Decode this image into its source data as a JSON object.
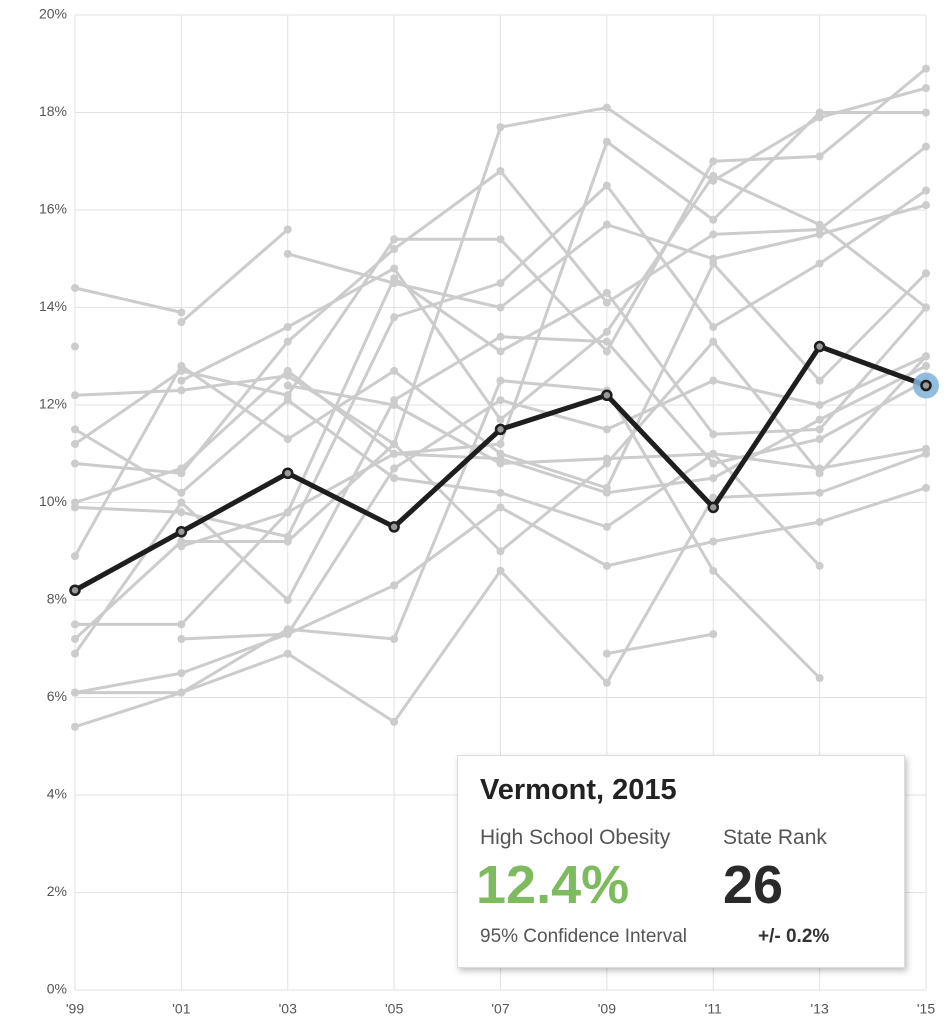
{
  "chart_data": {
    "type": "line",
    "categories": [
      "'99",
      "'01",
      "'03",
      "'05",
      "'07",
      "'09",
      "'11",
      "'13",
      "'15"
    ],
    "ylim": [
      0,
      20
    ],
    "yticks": [
      {
        "value": 0,
        "label": "0%"
      },
      {
        "value": 2,
        "label": "2%"
      },
      {
        "value": 4,
        "label": "4%"
      },
      {
        "value": 6,
        "label": "6%"
      },
      {
        "value": 8,
        "label": "8%"
      },
      {
        "value": 10,
        "label": "10%"
      },
      {
        "value": 12,
        "label": "12%"
      },
      {
        "value": 14,
        "label": "14%"
      },
      {
        "value": 16,
        "label": "16%"
      },
      {
        "value": 18,
        "label": "18%"
      },
      {
        "value": 20,
        "label": "20%"
      }
    ],
    "grid": true,
    "series": [
      {
        "color": "#cccccc",
        "values": [
          14.4,
          13.9,
          null,
          null,
          null,
          null,
          null,
          null,
          null
        ]
      },
      {
        "color": "#cccccc",
        "values": [
          null,
          13.7,
          15.6,
          null,
          null,
          null,
          null,
          null,
          null
        ]
      },
      {
        "color": "#cccccc",
        "values": [
          12.2,
          12.3,
          12.6,
          11.2,
          17.7,
          18.1,
          16.6,
          17.9,
          18.5
        ]
      },
      {
        "color": "#cccccc",
        "values": [
          11.2,
          12.7,
          12.2,
          15.4,
          15.4,
          13.1,
          17.0,
          17.1,
          18.9
        ]
      },
      {
        "color": "#cccccc",
        "values": [
          10.8,
          10.6,
          13.3,
          15.2,
          16.8,
          14.1,
          15.5,
          15.6,
          17.3
        ]
      },
      {
        "color": "#cccccc",
        "values": [
          10.0,
          10.7,
          12.7,
          11.0,
          11.2,
          17.4,
          15.8,
          18.0,
          18.0
        ]
      },
      {
        "color": "#cccccc",
        "values": [
          9.9,
          9.8,
          9.3,
          13.8,
          14.5,
          16.5,
          13.6,
          14.9,
          16.4
        ]
      },
      {
        "color": "#cccccc",
        "values": [
          8.9,
          12.8,
          11.3,
          12.7,
          11.0,
          10.3,
          14.9,
          12.5,
          14.7
        ]
      },
      {
        "color": "#cccccc",
        "values": [
          7.5,
          7.5,
          9.8,
          14.6,
          13.1,
          14.3,
          11.4,
          11.5,
          14.0
        ]
      },
      {
        "color": "#cccccc",
        "values": [
          7.2,
          9.2,
          9.2,
          11.2,
          9.0,
          10.8,
          13.3,
          10.6,
          13.0
        ]
      },
      {
        "color": "#cccccc",
        "values": [
          6.9,
          10.0,
          8.0,
          12.1,
          13.4,
          13.3,
          10.8,
          11.3,
          12.5
        ]
      },
      {
        "color": "#cccccc",
        "values": [
          6.1,
          6.1,
          7.4,
          7.2,
          12.5,
          12.3,
          8.6,
          6.4,
          null
        ]
      },
      {
        "color": "#cccccc",
        "values": [
          5.4,
          6.1,
          6.9,
          5.5,
          8.6,
          6.3,
          10.1,
          10.2,
          11.0
        ]
      },
      {
        "color": "#cccccc",
        "values": [
          6.1,
          6.5,
          7.3,
          8.3,
          9.9,
          8.7,
          9.2,
          9.6,
          10.3
        ]
      },
      {
        "color": "#cccccc",
        "values": [
          11.5,
          10.2,
          12.1,
          10.5,
          10.2,
          9.5,
          11.0,
          8.7,
          null
        ]
      },
      {
        "color": "#cccccc",
        "values": [
          null,
          7.2,
          7.3,
          10.7,
          12.1,
          11.5,
          12.5,
          12.0,
          13.0
        ]
      },
      {
        "color": "#cccccc",
        "values": [
          null,
          null,
          null,
          null,
          null,
          6.9,
          7.3,
          null,
          null
        ]
      },
      {
        "color": "#cccccc",
        "values": [
          null,
          null,
          15.1,
          14.5,
          14.0,
          15.7,
          15.0,
          15.5,
          16.1
        ]
      },
      {
        "color": "#cccccc",
        "values": [
          null,
          12.5,
          13.6,
          14.8,
          11.7,
          13.5,
          16.7,
          15.7,
          14.0
        ]
      },
      {
        "color": "#cccccc",
        "values": [
          null,
          null,
          12.4,
          12.0,
          10.8,
          10.9,
          11.0,
          10.7,
          11.1
        ]
      },
      {
        "color": "#cccccc",
        "values": [
          null,
          9.1,
          9.8,
          11.0,
          10.9,
          10.2,
          10.5,
          11.7,
          12.8
        ]
      },
      {
        "color": "#cccccc",
        "values": [
          13.2,
          null,
          null,
          null,
          null,
          null,
          null,
          null,
          null
        ]
      },
      {
        "name": "Vermont",
        "color": "#1e1e1e",
        "highlight": "#7fb1d9",
        "values": [
          8.2,
          9.4,
          10.6,
          9.5,
          11.5,
          12.2,
          9.9,
          13.2,
          12.4
        ]
      }
    ],
    "tooltip": {
      "title": "Vermont, 2015",
      "metric_label": "High School Obesity",
      "value": "12.4%",
      "value_color": "#7dbb5e",
      "rank_label": "State Rank",
      "rank": 26,
      "ci_label": "95% Confidence Interval",
      "ci": "+/- 0.2%"
    }
  }
}
